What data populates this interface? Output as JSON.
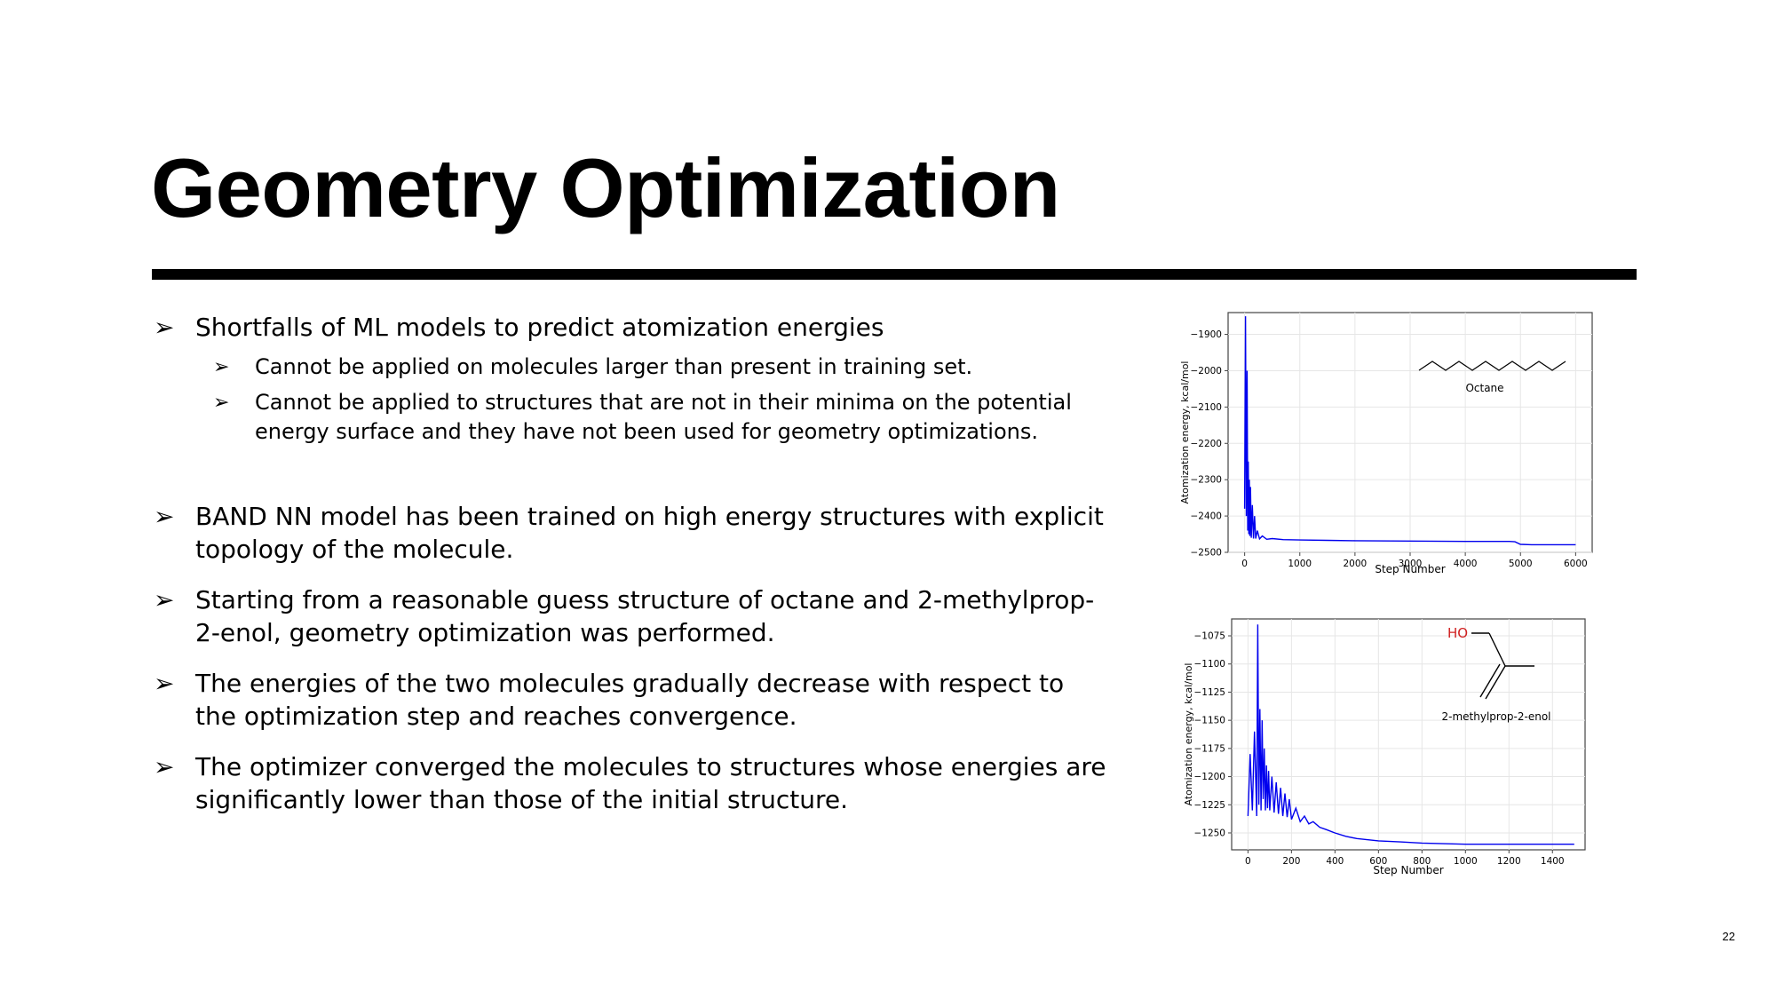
{
  "slide": {
    "title": "Geometry Optimization",
    "page_number": "22"
  },
  "bullets": [
    {
      "text": "Shortfalls of ML models to predict atomization energies"
    },
    {
      "text": "Cannot be applied on molecules larger than present in training set."
    },
    {
      "text": "Cannot be applied to structures that are not in their minima on the potential energy surface and they have not been used for geometry optimizations."
    },
    {
      "text": "BAND NN model has been trained on high energy structures with explicit topology of the molecule."
    },
    {
      "text": "Starting from a reasonable guess structure of octane and 2-methylprop-2-enol, geometry optimization was performed."
    },
    {
      "text": "The energies of the two molecules gradually decrease with respect to the optimization step and reaches convergence."
    },
    {
      "text": "The optimizer converged the molecules to structures whose energies are significantly lower than those of the initial structure."
    }
  ],
  "bullet_glyph": "➢",
  "chart_data": [
    {
      "type": "line",
      "xlabel": "Step Number",
      "ylabel": "Atomization energy, kcal/mol",
      "xlim": [
        -300,
        6300
      ],
      "ylim": [
        -2500,
        -1840
      ],
      "xticks": [
        0,
        1000,
        2000,
        3000,
        4000,
        5000,
        6000
      ],
      "xtick_labels": [
        "0",
        "1000",
        "2000",
        "3000",
        "4000",
        "5000",
        "6000"
      ],
      "yticks": [
        -1900,
        -2000,
        -2100,
        -2200,
        -2300,
        -2400,
        -2500
      ],
      "ytick_labels": [
        "−1900",
        "−2000",
        "−2100",
        "−2200",
        "−2300",
        "−2400",
        "−2500"
      ],
      "grid": true,
      "line_color": "#0000ee",
      "annotation": "Octane",
      "series": [
        {
          "x": [
            0,
            15,
            30,
            45,
            55,
            65,
            75,
            85,
            95,
            105,
            120,
            140,
            160,
            180,
            200,
            230,
            270,
            320,
            400,
            500,
            700,
            1000,
            1500,
            2000,
            3000,
            4000,
            4500,
            4800,
            4900,
            5000,
            5200,
            5500,
            6000
          ],
          "y": [
            -2380,
            -1850,
            -2400,
            -2000,
            -2440,
            -2250,
            -2450,
            -2300,
            -2455,
            -2320,
            -2460,
            -2370,
            -2462,
            -2400,
            -2462,
            -2440,
            -2463,
            -2455,
            -2464,
            -2462,
            -2465,
            -2466,
            -2467,
            -2468,
            -2469,
            -2470,
            -2470,
            -2470,
            -2471,
            -2478,
            -2479,
            -2479,
            -2479
          ]
        }
      ]
    },
    {
      "type": "line",
      "xlabel": "Step Number",
      "ylabel": "Atomization energy, kcal/mol",
      "xlim": [
        -75,
        1550
      ],
      "ylim": [
        -1265,
        -1060
      ],
      "xticks": [
        0,
        200,
        400,
        600,
        800,
        1000,
        1200,
        1400
      ],
      "xtick_labels": [
        "0",
        "200",
        "400",
        "600",
        "800",
        "1000",
        "1200",
        "1400"
      ],
      "yticks": [
        -1075,
        -1100,
        -1125,
        -1150,
        -1175,
        -1200,
        -1225,
        -1250
      ],
      "ytick_labels": [
        "−1075",
        "−1100",
        "−1125",
        "−1150",
        "−1175",
        "−1200",
        "−1225",
        "−1250"
      ],
      "grid": true,
      "line_color": "#0000ee",
      "annotation": "2-methylprop-2-enol",
      "annotation_group": "HO",
      "series": [
        {
          "x": [
            0,
            10,
            20,
            30,
            40,
            45,
            50,
            55,
            60,
            65,
            70,
            75,
            80,
            85,
            90,
            95,
            100,
            110,
            120,
            130,
            140,
            150,
            160,
            170,
            180,
            190,
            200,
            220,
            240,
            260,
            280,
            300,
            330,
            360,
            400,
            450,
            500,
            600,
            700,
            800,
            1000,
            1200,
            1400,
            1500
          ],
          "y": [
            -1235,
            -1180,
            -1230,
            -1160,
            -1235,
            -1065,
            -1225,
            -1140,
            -1230,
            -1150,
            -1220,
            -1175,
            -1230,
            -1190,
            -1228,
            -1195,
            -1230,
            -1200,
            -1232,
            -1205,
            -1233,
            -1210,
            -1235,
            -1215,
            -1236,
            -1220,
            -1238,
            -1228,
            -1240,
            -1235,
            -1242,
            -1240,
            -1245,
            -1247,
            -1250,
            -1253,
            -1255,
            -1257,
            -1258,
            -1259,
            -1260,
            -1260,
            -1260,
            -1260
          ]
        }
      ]
    }
  ]
}
